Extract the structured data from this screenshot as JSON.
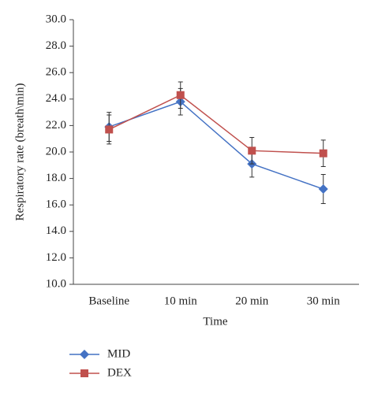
{
  "chart_data": {
    "type": "line",
    "x_label": "Time",
    "y_label": "Respiratory rate (breath\\min)",
    "categories": [
      "Baseline",
      "10 min",
      "20 min",
      "30 min"
    ],
    "series": [
      {
        "name": "MID",
        "color": "#4472c4",
        "marker": "diamond",
        "values": [
          21.9,
          23.8,
          19.1,
          17.2
        ],
        "errors": [
          1.1,
          1.0,
          1.0,
          1.1
        ]
      },
      {
        "name": "DEX",
        "color": "#c0504d",
        "marker": "square",
        "values": [
          21.7,
          24.3,
          20.1,
          19.9
        ],
        "errors": [
          1.1,
          1.0,
          1.0,
          1.0
        ]
      }
    ],
    "ylim": [
      10,
      30
    ],
    "yticks": [
      {
        "value": 10,
        "label": "10.0"
      },
      {
        "value": 12,
        "label": "12.0"
      },
      {
        "value": 14,
        "label": "14.0"
      },
      {
        "value": 16,
        "label": "16.0"
      },
      {
        "value": 18,
        "label": "18.0"
      },
      {
        "value": 20,
        "label": "20.0"
      },
      {
        "value": 22,
        "label": "22.0"
      },
      {
        "value": 24,
        "label": "24.0"
      },
      {
        "value": 26,
        "label": "26.0"
      },
      {
        "value": 28,
        "label": "28.0"
      },
      {
        "value": 30,
        "label": "30.0"
      }
    ],
    "grid": false
  }
}
